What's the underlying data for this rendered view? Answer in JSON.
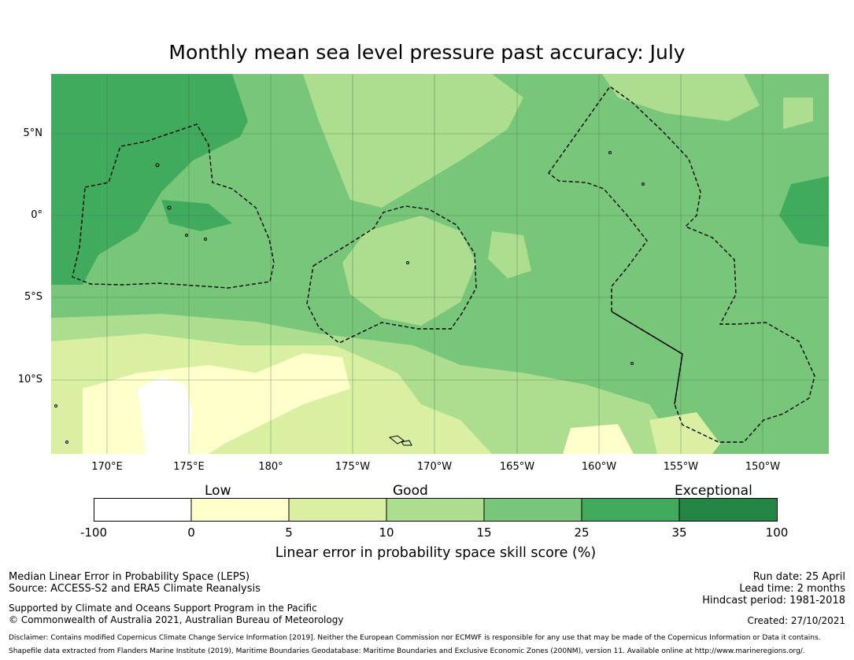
{
  "title": "Monthly mean sea level pressure past accuracy: July",
  "map": {
    "lat_labels": [
      "5°N",
      "0°",
      "5°S",
      "10°S"
    ],
    "lon_labels": [
      "170°E",
      "175°E",
      "180°",
      "175°W",
      "170°W",
      "165°W",
      "160°W",
      "155°W",
      "150°W"
    ],
    "colors": {
      "c1": "#ffffcc",
      "c2": "#d9f0a3",
      "c3": "#addd8e",
      "c4": "#78c679",
      "c5": "#41ab5d",
      "c6": "#238443",
      "white": "#ffffff"
    }
  },
  "colorbar": {
    "categories": [
      "Low",
      "Good",
      "Exceptional"
    ],
    "ticks": [
      "-100",
      "0",
      "5",
      "10",
      "15",
      "25",
      "35",
      "100"
    ],
    "colors": [
      "#ffffff",
      "#ffffcc",
      "#d9f0a3",
      "#addd8e",
      "#78c679",
      "#41ab5d",
      "#238443"
    ],
    "title": "Linear error in probability space skill score (%)"
  },
  "footer": {
    "method": "Median Linear Error in Probability Space (LEPS)",
    "source": "Source: ACCESS-S2 and ERA5 Climate Reanalysis",
    "support": "Supported by Climate and Oceans Support Program in the Pacific",
    "copyright": "© Commonwealth of Australia 2021, Australian Bureau of Meteorology",
    "run_date": "Run date: 25 April",
    "lead_time": "Lead time: 2 months",
    "hindcast": "Hindcast period: 1981-2018",
    "created": "Created: 27/10/2021",
    "disclaimer1": "Disclaimer: Contains modified Copernicus Climate Change Service Information [2019]. Neither the European Commission nor ECMWF is responsible for any use that may be made of the Copernicus Information or Data it contains.",
    "disclaimer2": "Shapefile data extracted from Flanders Marine Institute (2019), Maritime Boundaries Geodatabase: Maritime Boundaries and Exclusive Economic Zones (200NM), version 11. Available online at http://www.marineregions.org/."
  }
}
